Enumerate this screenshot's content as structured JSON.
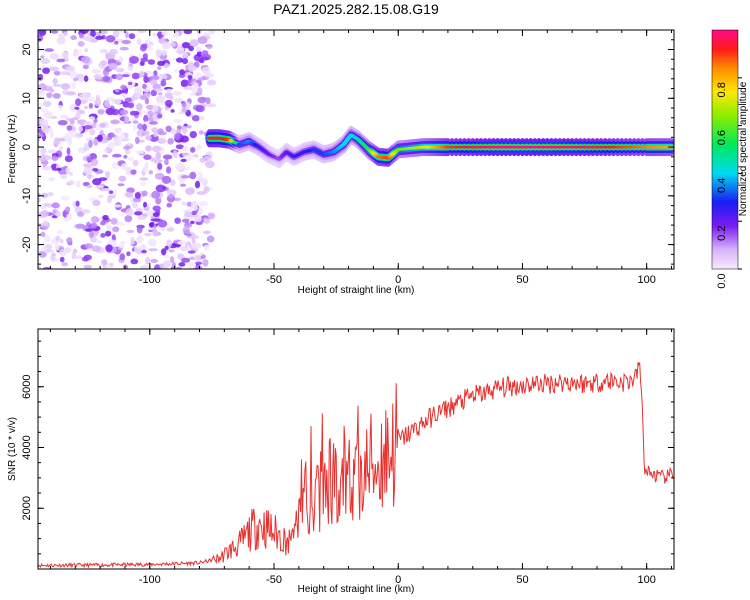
{
  "chart_data": [
    {
      "type": "heatmap",
      "title": "PAZ1.2025.282.15.08.G19",
      "xlabel": "Height of straight line (km)",
      "ylabel": "Frequency (Hz)",
      "xlim": [
        -145,
        111
      ],
      "ylim": [
        -25,
        24
      ],
      "xticks": [
        -100,
        -50,
        0,
        50,
        100
      ],
      "yticks": [
        -20,
        -10,
        0,
        10,
        20
      ],
      "noise_region_x": [
        -145,
        -75
      ],
      "ridge": {
        "x": [
          -76,
          -72,
          -68,
          -64,
          -60,
          -56,
          -52,
          -48,
          -45,
          -42,
          -38,
          -34,
          -30,
          -26,
          -22,
          -19,
          -16,
          -12,
          -8,
          -4,
          0,
          10,
          20,
          40,
          60,
          80,
          100,
          111
        ],
        "freq": [
          1.8,
          1.8,
          1.5,
          0.5,
          1.2,
          0.0,
          -1.5,
          -2.5,
          -1.0,
          -2.0,
          -1.0,
          -0.5,
          -1.5,
          -1.0,
          0.5,
          2.5,
          1.5,
          -0.5,
          -2.0,
          -2.2,
          -0.5,
          0.0,
          0.0,
          0.0,
          0.0,
          0.0,
          0.0,
          0.0
        ],
        "amplitude": [
          0.95,
          0.95,
          0.9,
          0.3,
          0.35,
          0.25,
          0.2,
          0.15,
          0.2,
          0.25,
          0.25,
          0.3,
          0.3,
          0.35,
          0.4,
          0.4,
          0.45,
          0.55,
          0.85,
          0.9,
          0.6,
          0.7,
          0.9,
          1.0,
          1.0,
          0.95,
          0.85,
          0.8
        ]
      },
      "colorbar": {
        "label": "Normalized spectral amplitude",
        "ticks": [
          "0.0",
          "0.2",
          "0.4",
          "0.6",
          "0.8"
        ],
        "range": [
          0,
          1
        ]
      }
    },
    {
      "type": "line",
      "xlabel": "Height of straight line (km)",
      "ylabel": "SNR (10 * v/v)",
      "xlim": [
        -145,
        111
      ],
      "ylim": [
        0,
        7900
      ],
      "xticks": [
        -100,
        -50,
        0,
        50,
        100
      ],
      "yticks": [
        2000,
        4000,
        6000
      ],
      "series": [
        {
          "name": "SNR",
          "color": "#e8312e",
          "x": [
            -145,
            -120,
            -100,
            -80,
            -72,
            -68,
            -64,
            -60,
            -56,
            -52,
            -48,
            -44,
            -42,
            -40,
            -38,
            -36,
            -34,
            -32,
            -30,
            -28,
            -26,
            -24,
            -22,
            -20,
            -18,
            -16,
            -14,
            -12,
            -10,
            -8,
            -6,
            -4,
            -2,
            0,
            5,
            10,
            15,
            20,
            25,
            30,
            35,
            40,
            45,
            50,
            55,
            60,
            65,
            70,
            75,
            80,
            85,
            90,
            94,
            96,
            97,
            98,
            99,
            100,
            103,
            106,
            111
          ],
          "values": [
            120,
            130,
            150,
            200,
            350,
            600,
            800,
            1200,
            1500,
            1300,
            1100,
            900,
            1200,
            2000,
            2800,
            2200,
            2400,
            2700,
            2500,
            3000,
            2700,
            2900,
            2800,
            3200,
            3000,
            3600,
            3100,
            3300,
            3500,
            3400,
            3800,
            3900,
            4000,
            4200,
            4500,
            4800,
            5100,
            5300,
            5500,
            5700,
            5800,
            5950,
            6000,
            6050,
            6100,
            6100,
            6150,
            6150,
            6100,
            6150,
            6200,
            6150,
            6200,
            6400,
            6800,
            5800,
            3400,
            3200,
            3100,
            3000,
            3100
          ]
        }
      ]
    }
  ]
}
